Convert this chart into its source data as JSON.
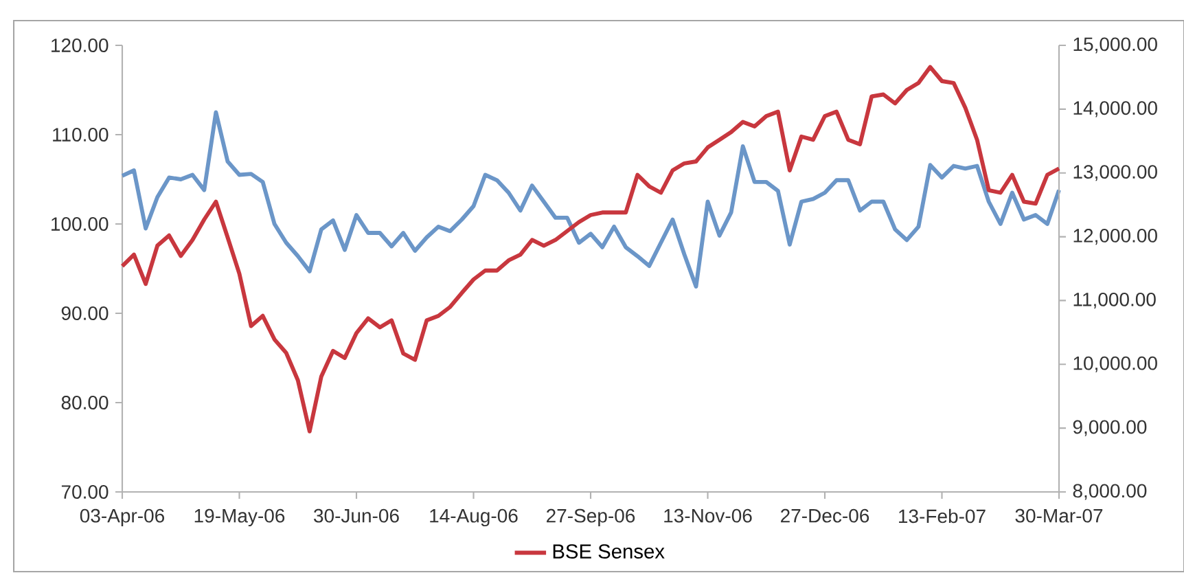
{
  "chart_data": {
    "type": "line",
    "categories": [
      "03-Apr-06",
      null,
      null,
      null,
      null,
      null,
      null,
      null,
      null,
      null,
      "19-May-06",
      null,
      null,
      null,
      null,
      null,
      null,
      null,
      null,
      null,
      "30-Jun-06",
      null,
      null,
      null,
      null,
      null,
      null,
      null,
      null,
      null,
      "14-Aug-06",
      null,
      null,
      null,
      null,
      null,
      null,
      null,
      null,
      null,
      "27-Sep-06",
      null,
      null,
      null,
      null,
      null,
      null,
      null,
      null,
      null,
      "13-Nov-06",
      null,
      null,
      null,
      null,
      null,
      null,
      null,
      null,
      null,
      "27-Dec-06",
      null,
      null,
      null,
      null,
      null,
      null,
      null,
      null,
      null,
      "13-Feb-07",
      null,
      null,
      null,
      null,
      null,
      null,
      null,
      null,
      null,
      "30-Mar-07"
    ],
    "series": [
      {
        "color": "#6b96c8",
        "values": [
          105.4,
          106,
          99.5,
          103,
          105.2,
          105,
          105.5,
          103.8,
          112.5,
          107,
          105.5,
          105.6,
          104.7,
          100,
          97.9,
          96.4,
          94.7,
          99.4,
          100.4,
          97.1,
          101,
          99,
          99,
          97.5,
          99,
          97,
          98.5,
          99.7,
          99.2,
          100.5,
          102,
          105.5,
          104.9,
          103.5,
          101.5,
          104.3,
          102.5,
          100.7,
          100.7,
          97.9,
          98.9,
          97.4,
          99.7,
          97.4,
          96.4,
          95.3,
          97.9,
          100.5,
          96.6,
          93,
          102.5,
          98.7,
          101.3,
          108.7,
          104.7,
          104.7,
          103.7,
          97.7,
          102.5,
          102.8,
          103.5,
          104.9,
          104.9,
          101.5,
          102.5,
          102.5,
          99.4,
          98.2,
          99.7,
          106.6,
          105.2,
          106.5,
          106.2,
          106.5,
          102.5,
          100,
          103.5,
          100.5,
          101,
          100,
          103.8
        ]
      },
      {
        "name": "BSE Sensex",
        "color": "#c8373e",
        "axis": "y2",
        "values": [
          11540,
          11720,
          11260,
          11860,
          12020,
          11700,
          11950,
          12270,
          12550,
          11990,
          11420,
          10600,
          10760,
          10390,
          10180,
          9750,
          8950,
          9810,
          10210,
          10100,
          10490,
          10720,
          10580,
          10690,
          10170,
          10070,
          10690,
          10760,
          10900,
          11120,
          11330,
          11470,
          11470,
          11630,
          11720,
          11950,
          11860,
          11950,
          12090,
          12230,
          12340,
          12380,
          12380,
          12380,
          12970,
          12790,
          12690,
          13040,
          13150,
          13180,
          13400,
          13520,
          13640,
          13800,
          13730,
          13890,
          13960,
          13040,
          13570,
          13520,
          13890,
          13960,
          13520,
          13450,
          14200,
          14230,
          14090,
          14300,
          14410,
          14660,
          14440,
          14410,
          14020,
          13520,
          12730,
          12690,
          12970,
          12550,
          12520,
          12970,
          13070
        ]
      }
    ],
    "ylim": [
      70,
      120
    ],
    "yticks": [
      {
        "value": 70,
        "label": "70.00"
      },
      {
        "value": 80,
        "label": "80.00"
      },
      {
        "value": 90,
        "label": "90.00"
      },
      {
        "value": 100,
        "label": "100.00"
      },
      {
        "value": 110,
        "label": "110.00"
      },
      {
        "value": 120,
        "label": "120.00"
      }
    ],
    "y2lim": [
      8000,
      15000
    ],
    "y2ticks": [
      {
        "value": 8000,
        "label": "8,000.00"
      },
      {
        "value": 9000,
        "label": "9,000.00"
      },
      {
        "value": 10000,
        "label": "10,000.00"
      },
      {
        "value": 11000,
        "label": "11,000.00"
      },
      {
        "value": 12000,
        "label": "12,000.00"
      },
      {
        "value": 13000,
        "label": "13,000.00"
      },
      {
        "value": 14000,
        "label": "14,000.00"
      },
      {
        "value": 15000,
        "label": "15,000.00"
      }
    ],
    "legend": "bottom",
    "marker": "none",
    "line_style": "solid"
  }
}
